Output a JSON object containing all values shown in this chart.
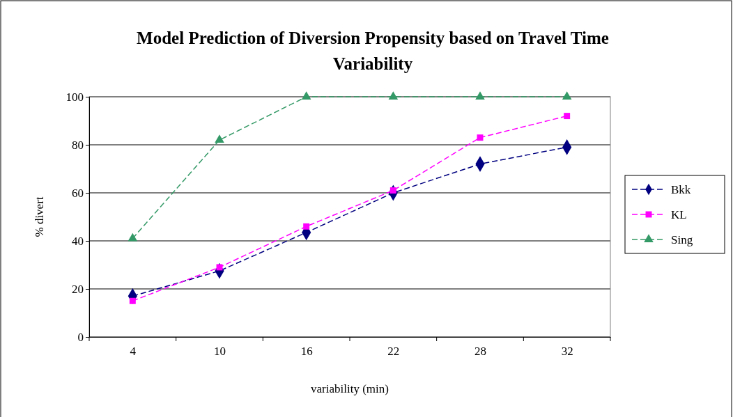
{
  "chart_data": {
    "type": "line",
    "title": "Model Prediction of Diversion Propensity based on Travel Time Variability",
    "xlabel": "variability (min)",
    "ylabel": "% divert",
    "categories": [
      "4",
      "10",
      "16",
      "22",
      "28",
      "32"
    ],
    "series": [
      {
        "name": "Bkk",
        "color": "#000080",
        "marker": "diamond",
        "values": [
          17,
          27.5,
          43.5,
          60,
          72,
          79
        ]
      },
      {
        "name": "KL",
        "color": "#ff00ff",
        "marker": "square",
        "values": [
          15,
          29,
          46,
          61,
          83,
          92
        ]
      },
      {
        "name": "Sing",
        "color": "#339966",
        "marker": "triangle",
        "values": [
          41,
          82,
          100,
          100,
          100,
          100
        ]
      }
    ],
    "ylim": [
      0,
      100
    ],
    "yticks": [
      0,
      20,
      40,
      60,
      80,
      100
    ],
    "grid": "y",
    "legend": "right",
    "line_style": "dashed"
  }
}
